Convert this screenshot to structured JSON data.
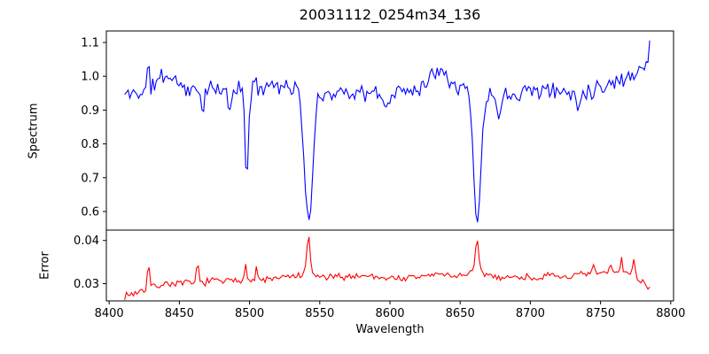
{
  "title": "20031112_0254m34_136",
  "chart_data": {
    "type": "line",
    "title": "20031112_0254m34_136",
    "xlabel": "Wavelength",
    "grid": false,
    "legend": null,
    "xlim": [
      8398,
      8802
    ],
    "xticks": [
      8400,
      8450,
      8500,
      8550,
      8600,
      8650,
      8700,
      8750,
      8800
    ],
    "xtick_labels": [
      "8400",
      "8450",
      "8500",
      "8550",
      "8600",
      "8650",
      "8700",
      "8750",
      "8800"
    ],
    "panels": [
      {
        "name": "spectrum",
        "ylabel": "Spectrum",
        "line_color": "#0000ff",
        "ylim": [
          0.545,
          1.134
        ],
        "yticks": [
          0.6,
          0.7,
          0.8,
          0.9,
          1.0,
          1.1
        ],
        "ytick_labels": [
          "0.6",
          "0.7",
          "0.8",
          "0.9",
          "1.0",
          "1.1"
        ],
        "series": {
          "x_start": 8411,
          "x_end": 8785,
          "n_points": 300,
          "seed": 11,
          "noise_peak": 0.032,
          "noise_tracks_lines": true,
          "continuum_anchors": [
            [
              8411,
              0.945
            ],
            [
              8418,
              0.95
            ],
            [
              8425,
              0.956
            ],
            [
              8431,
              0.97
            ],
            [
              8437,
              1.0
            ],
            [
              8444,
              1.0
            ],
            [
              8450,
              0.978
            ],
            [
              8458,
              0.956
            ],
            [
              8466,
              0.958
            ],
            [
              8474,
              0.96
            ],
            [
              8482,
              0.952
            ],
            [
              8490,
              0.962
            ],
            [
              8498,
              0.964
            ],
            [
              8506,
              0.968
            ],
            [
              8514,
              0.978
            ],
            [
              8522,
              0.974
            ],
            [
              8530,
              0.968
            ],
            [
              8538,
              0.97
            ],
            [
              8546,
              0.964
            ],
            [
              8554,
              0.948
            ],
            [
              8562,
              0.955
            ],
            [
              8570,
              0.955
            ],
            [
              8578,
              0.951
            ],
            [
              8586,
              0.948
            ],
            [
              8594,
              0.945
            ],
            [
              8602,
              0.946
            ],
            [
              8610,
              0.958
            ],
            [
              8618,
              0.964
            ],
            [
              8626,
              0.98
            ],
            [
              8633,
              1.022
            ],
            [
              8638,
              1.028
            ],
            [
              8644,
              0.984
            ],
            [
              8650,
              0.968
            ],
            [
              8657,
              0.968
            ],
            [
              8664,
              0.945
            ],
            [
              8672,
              0.942
            ],
            [
              8680,
              0.94
            ],
            [
              8688,
              0.952
            ],
            [
              8696,
              0.958
            ],
            [
              8704,
              0.962
            ],
            [
              8712,
              0.958
            ],
            [
              8720,
              0.955
            ],
            [
              8728,
              0.95
            ],
            [
              8736,
              0.952
            ],
            [
              8744,
              0.962
            ],
            [
              8752,
              0.972
            ],
            [
              8760,
              0.982
            ],
            [
              8768,
              0.995
            ],
            [
              8776,
              1.016
            ],
            [
              8785,
              1.052
            ]
          ],
          "features": [
            {
              "center": 8498.0,
              "depth": 0.265,
              "sigma": 1.2
            },
            {
              "center": 8542.1,
              "depth": 0.4,
              "sigma": 3.0
            },
            {
              "center": 8662.1,
              "depth": 0.38,
              "sigma": 2.6
            },
            {
              "center": 8428.0,
              "depth": -0.095,
              "sigma": 0.6
            },
            {
              "center": 8466.5,
              "depth": 0.055,
              "sigma": 0.9
            },
            {
              "center": 8486.0,
              "depth": 0.06,
              "sigma": 1.0
            },
            {
              "center": 8597.0,
              "depth": 0.05,
              "sigma": 1.2
            },
            {
              "center": 8678.0,
              "depth": 0.055,
              "sigma": 1.0
            },
            {
              "center": 8734.0,
              "depth": 0.05,
              "sigma": 1.0
            },
            {
              "center": 8785.0,
              "depth": -0.05,
              "sigma": 0.6
            }
          ]
        }
      },
      {
        "name": "error",
        "ylabel": "Error",
        "line_color": "#ff0000",
        "ylim": [
          0.026,
          0.0424
        ],
        "yticks": [
          0.03,
          0.04
        ],
        "ytick_labels": [
          "0.03",
          "0.04"
        ],
        "series": {
          "x_start": 8411,
          "x_end": 8785,
          "n_points": 300,
          "seed": 7,
          "noise_peak": 0.001,
          "noise_tracks_lines": false,
          "continuum_anchors": [
            [
              8411,
              0.0272
            ],
            [
              8418,
              0.0278
            ],
            [
              8426,
              0.0288
            ],
            [
              8434,
              0.0295
            ],
            [
              8442,
              0.0301
            ],
            [
              8450,
              0.03
            ],
            [
              8458,
              0.0301
            ],
            [
              8466,
              0.0303
            ],
            [
              8474,
              0.0307
            ],
            [
              8482,
              0.0305
            ],
            [
              8490,
              0.0306
            ],
            [
              8498,
              0.0308
            ],
            [
              8506,
              0.0308
            ],
            [
              8514,
              0.031
            ],
            [
              8522,
              0.0313
            ],
            [
              8530,
              0.0316
            ],
            [
              8540,
              0.032
            ],
            [
              8548,
              0.0317
            ],
            [
              8556,
              0.0314
            ],
            [
              8564,
              0.0315
            ],
            [
              8572,
              0.0317
            ],
            [
              8580,
              0.0319
            ],
            [
              8588,
              0.0317
            ],
            [
              8596,
              0.0314
            ],
            [
              8604,
              0.0313
            ],
            [
              8612,
              0.0312
            ],
            [
              8620,
              0.0315
            ],
            [
              8628,
              0.032
            ],
            [
              8636,
              0.0322
            ],
            [
              8644,
              0.0318
            ],
            [
              8652,
              0.032
            ],
            [
              8660,
              0.0327
            ],
            [
              8668,
              0.0322
            ],
            [
              8676,
              0.0316
            ],
            [
              8684,
              0.0314
            ],
            [
              8692,
              0.0316
            ],
            [
              8700,
              0.0314
            ],
            [
              8708,
              0.0315
            ],
            [
              8716,
              0.0317
            ],
            [
              8724,
              0.0316
            ],
            [
              8732,
              0.0318
            ],
            [
              8740,
              0.0321
            ],
            [
              8748,
              0.0323
            ],
            [
              8756,
              0.0325
            ],
            [
              8764,
              0.0328
            ],
            [
              8772,
              0.0325
            ],
            [
              8778,
              0.0308
            ],
            [
              8785,
              0.029
            ]
          ],
          "features": [
            {
              "center": 8428,
              "depth": -0.0062,
              "sigma": 0.7
            },
            {
              "center": 8463,
              "depth": -0.0046,
              "sigma": 0.7
            },
            {
              "center": 8497,
              "depth": -0.005,
              "sigma": 0.7
            },
            {
              "center": 8505,
              "depth": -0.0028,
              "sigma": 0.6
            },
            {
              "center": 8542,
              "depth": -0.0095,
              "sigma": 1.1
            },
            {
              "center": 8662,
              "depth": -0.0076,
              "sigma": 1.1
            },
            {
              "center": 8745,
              "depth": -0.0018,
              "sigma": 0.8
            },
            {
              "center": 8757,
              "depth": -0.0022,
              "sigma": 0.7
            },
            {
              "center": 8765,
              "depth": -0.0032,
              "sigma": 0.7
            },
            {
              "center": 8774,
              "depth": -0.0042,
              "sigma": 0.7
            }
          ]
        }
      }
    ],
    "notable_points": {
      "absorption_minima": [
        {
          "wavelength": 8498,
          "flux": 0.7
        },
        {
          "wavelength": 8542,
          "flux": 0.57
        },
        {
          "wavelength": 8662,
          "flux": 0.57
        }
      ],
      "error_maxima": [
        {
          "wavelength": 8542,
          "error": 0.0415
        },
        {
          "wavelength": 8662,
          "error": 0.0405
        }
      ]
    }
  }
}
